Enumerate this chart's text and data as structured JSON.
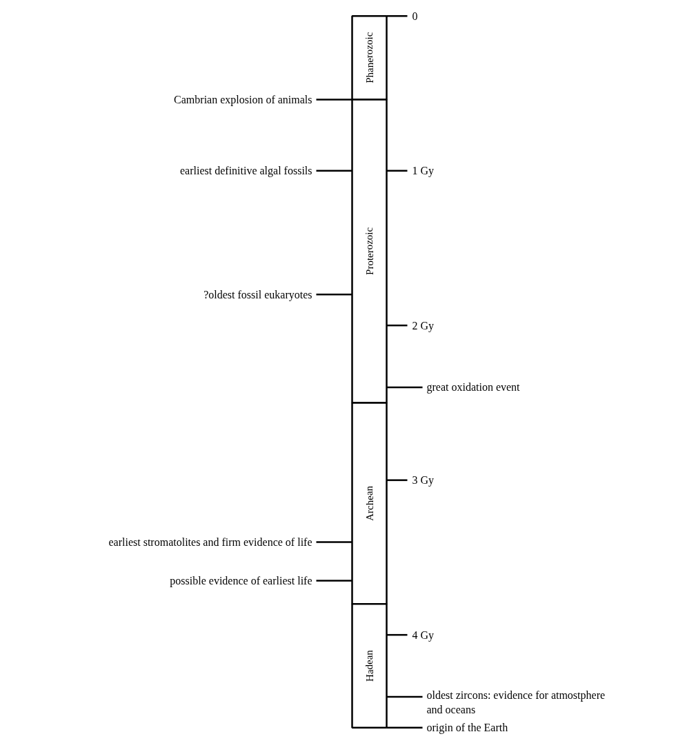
{
  "chart_data": {
    "type": "bar",
    "stacked": true,
    "categories": [
      null
    ],
    "series": [
      {
        "name": "Phanerozoic",
        "color": "#ffffff",
        "values": [
          0.54
        ]
      },
      {
        "name": "Proterozoic",
        "color": "#ffffff",
        "values": [
          1.96
        ]
      },
      {
        "name": "Archean",
        "color": "#ffffff",
        "values": [
          1.3
        ]
      },
      {
        "name": "Hadean",
        "color": "#ffffff",
        "values": [
          0.8
        ]
      }
    ],
    "ylim": [
      4.6,
      0
    ],
    "yticks": [
      0,
      {
        "value": 1,
        "label": "1 Gy"
      },
      {
        "value": 2,
        "label": "2 Gy"
      },
      {
        "value": 3,
        "label": "3 Gy"
      },
      {
        "value": 4,
        "label": "4 Gy"
      }
    ],
    "ref_lines": [
      {
        "axis": "y",
        "value": 0.54,
        "label": "Cambrian explosion of animals"
      },
      {
        "axis": "y",
        "value": 1.0,
        "label": "earliest definitive algal fossils"
      },
      {
        "axis": "y",
        "value": 1.8,
        "label": "?oldest fossil eukaryotes"
      },
      {
        "axis": "y",
        "value": 2.4,
        "label": "great oxidation event"
      },
      {
        "axis": "y",
        "value": 3.4,
        "label": "earliest stromatolites and firm evidence of life"
      },
      {
        "axis": "y",
        "value": 3.65,
        "label": "possible evidence of earliest life"
      },
      {
        "axis": "y",
        "value": 4.4,
        "label": "oldest zircons: evidence for atmostphere\n                and oceans"
      },
      {
        "axis": "y",
        "value": 4.6,
        "label": "origin of the Earth"
      }
    ]
  }
}
